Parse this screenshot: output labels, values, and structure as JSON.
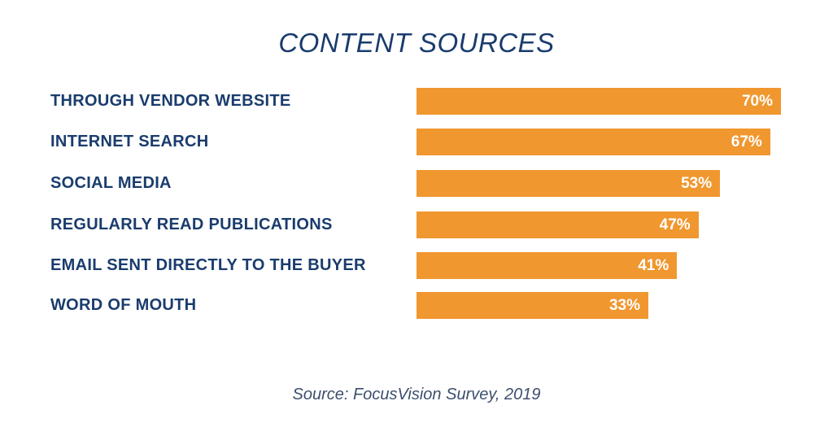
{
  "chart_data": {
    "type": "bar",
    "orientation": "horizontal",
    "title": "CONTENT SOURCES",
    "categories": [
      "THROUGH VENDOR WEBSITE",
      "INTERNET SEARCH",
      "SOCIAL MEDIA",
      "REGULARLY READ PUBLICATIONS",
      "EMAIL SENT DIRECTLY TO THE BUYER",
      "WORD OF MOUTH"
    ],
    "values": [
      70,
      67,
      53,
      47,
      41,
      33
    ],
    "value_labels": [
      "70%",
      "67%",
      "53%",
      "47%",
      "41%",
      "33%"
    ],
    "unit": "%",
    "source": "Source: FocusVision Survey, 2019",
    "grid": false,
    "colors": {
      "bar": "#f0972f",
      "text": "#1a3c6d"
    }
  }
}
